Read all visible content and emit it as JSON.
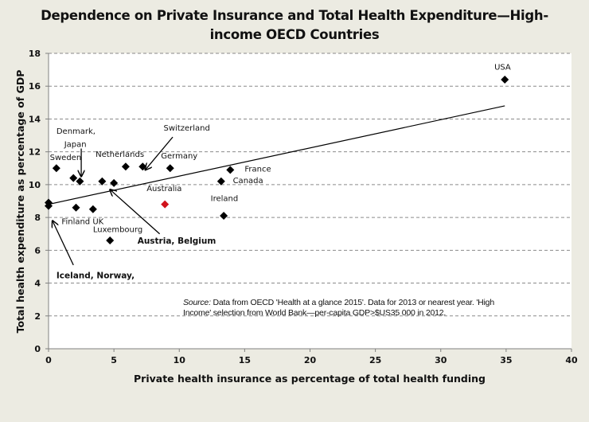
{
  "chart_data": {
    "type": "scatter",
    "title": "Dependence on Private Insurance and Total Health Expenditure—High-income OECD Countries",
    "title_lines": [
      "Dependence on Private Insurance and Total Health Expenditure—High-",
      "income OECD Countries"
    ],
    "xlabel": "Private health insurance as percentage of total health funding",
    "ylabel": "Total health expenditure as percentage of GDP",
    "xlim": [
      0,
      40
    ],
    "ylim": [
      0,
      18
    ],
    "xticks": [
      0,
      5,
      10,
      15,
      20,
      25,
      30,
      35,
      40
    ],
    "yticks": [
      0,
      2,
      4,
      6,
      8,
      10,
      12,
      14,
      16,
      18
    ],
    "grid": "horizontal-dashed",
    "legend": "none",
    "marker": "diamond",
    "colors": {
      "default": "#000000",
      "highlight": "#d0121b"
    },
    "points": [
      {
        "name": "Iceland",
        "x": 0.0,
        "y": 8.9
      },
      {
        "name": "Norway",
        "x": 0.0,
        "y": 8.7
      },
      {
        "name": "Sweden",
        "x": 0.6,
        "y": 11.0
      },
      {
        "name": "Denmark",
        "x": 1.9,
        "y": 10.4
      },
      {
        "name": "Japan",
        "x": 2.4,
        "y": 10.2
      },
      {
        "name": "Finland",
        "x": 2.1,
        "y": 8.6
      },
      {
        "name": "UK",
        "x": 3.4,
        "y": 8.5
      },
      {
        "name": "Austria",
        "x": 4.1,
        "y": 10.2
      },
      {
        "name": "Belgium",
        "x": 5.0,
        "y": 10.1
      },
      {
        "name": "Luxembourg",
        "x": 4.7,
        "y": 6.6
      },
      {
        "name": "Netherlands",
        "x": 5.9,
        "y": 11.1
      },
      {
        "name": "Switzerland",
        "x": 7.2,
        "y": 11.1
      },
      {
        "name": "Germany",
        "x": 9.3,
        "y": 11.0
      },
      {
        "name": "Australia",
        "x": 8.9,
        "y": 8.8,
        "highlight": true
      },
      {
        "name": "Canada",
        "x": 13.2,
        "y": 10.2
      },
      {
        "name": "France",
        "x": 13.9,
        "y": 10.9
      },
      {
        "name": "Ireland",
        "x": 13.4,
        "y": 8.1
      },
      {
        "name": "USA",
        "x": 34.9,
        "y": 16.4
      }
    ],
    "trendline": {
      "x": [
        0,
        34.9
      ],
      "y": [
        8.8,
        14.8
      ]
    },
    "labels": [
      {
        "text": "USA",
        "x": 34.1,
        "y": 17.0,
        "style": "normal"
      },
      {
        "text": "Switzerland",
        "x": 8.8,
        "y": 13.3,
        "style": "normal"
      },
      {
        "text": "Denmark,",
        "x": 0.6,
        "y": 13.1,
        "style": "normal"
      },
      {
        "text": "Japan",
        "x": 1.2,
        "y": 12.3,
        "style": "normal"
      },
      {
        "text": "Netherlands",
        "x": 3.6,
        "y": 11.7,
        "style": "normal"
      },
      {
        "text": "Germany",
        "x": 8.6,
        "y": 11.6,
        "style": "normal"
      },
      {
        "text": "Sweden",
        "x": 0.1,
        "y": 11.5,
        "style": "normal"
      },
      {
        "text": "France",
        "x": 15.0,
        "y": 10.8,
        "style": "normal"
      },
      {
        "text": "Canada",
        "x": 14.1,
        "y": 10.1,
        "style": "normal"
      },
      {
        "text": "Australia",
        "x": 7.5,
        "y": 9.6,
        "style": "highlight"
      },
      {
        "text": "Ireland",
        "x": 12.4,
        "y": 9.0,
        "style": "normal"
      },
      {
        "text": "Finland UK",
        "x": 1.0,
        "y": 7.6,
        "style": "normal"
      },
      {
        "text": "Luxembourg",
        "x": 3.4,
        "y": 7.1,
        "style": "normal"
      },
      {
        "text": "Austria, Belgium",
        "x": 6.8,
        "y": 6.4,
        "style": "bold"
      },
      {
        "text": "Iceland, Norway,",
        "x": 0.6,
        "y": 4.3,
        "style": "bold"
      }
    ],
    "arrows": [
      {
        "from": [
          9.5,
          12.9
        ],
        "to": [
          7.4,
          10.9
        ]
      },
      {
        "from": [
          2.5,
          12.2
        ],
        "to": [
          2.5,
          10.5
        ]
      },
      {
        "from": [
          8.5,
          7.0
        ],
        "to": [
          4.7,
          9.7
        ]
      },
      {
        "from": [
          1.9,
          5.1
        ],
        "to": [
          0.3,
          7.8
        ]
      }
    ],
    "annotation": {
      "source_label": "Source:",
      "text": "Data from OECD 'Health at a glance 2015'.  Data for 2013  or nearest year. 'High Income' selection from World Bank—per-capita GDP>$US35 000 in 2012."
    }
  }
}
